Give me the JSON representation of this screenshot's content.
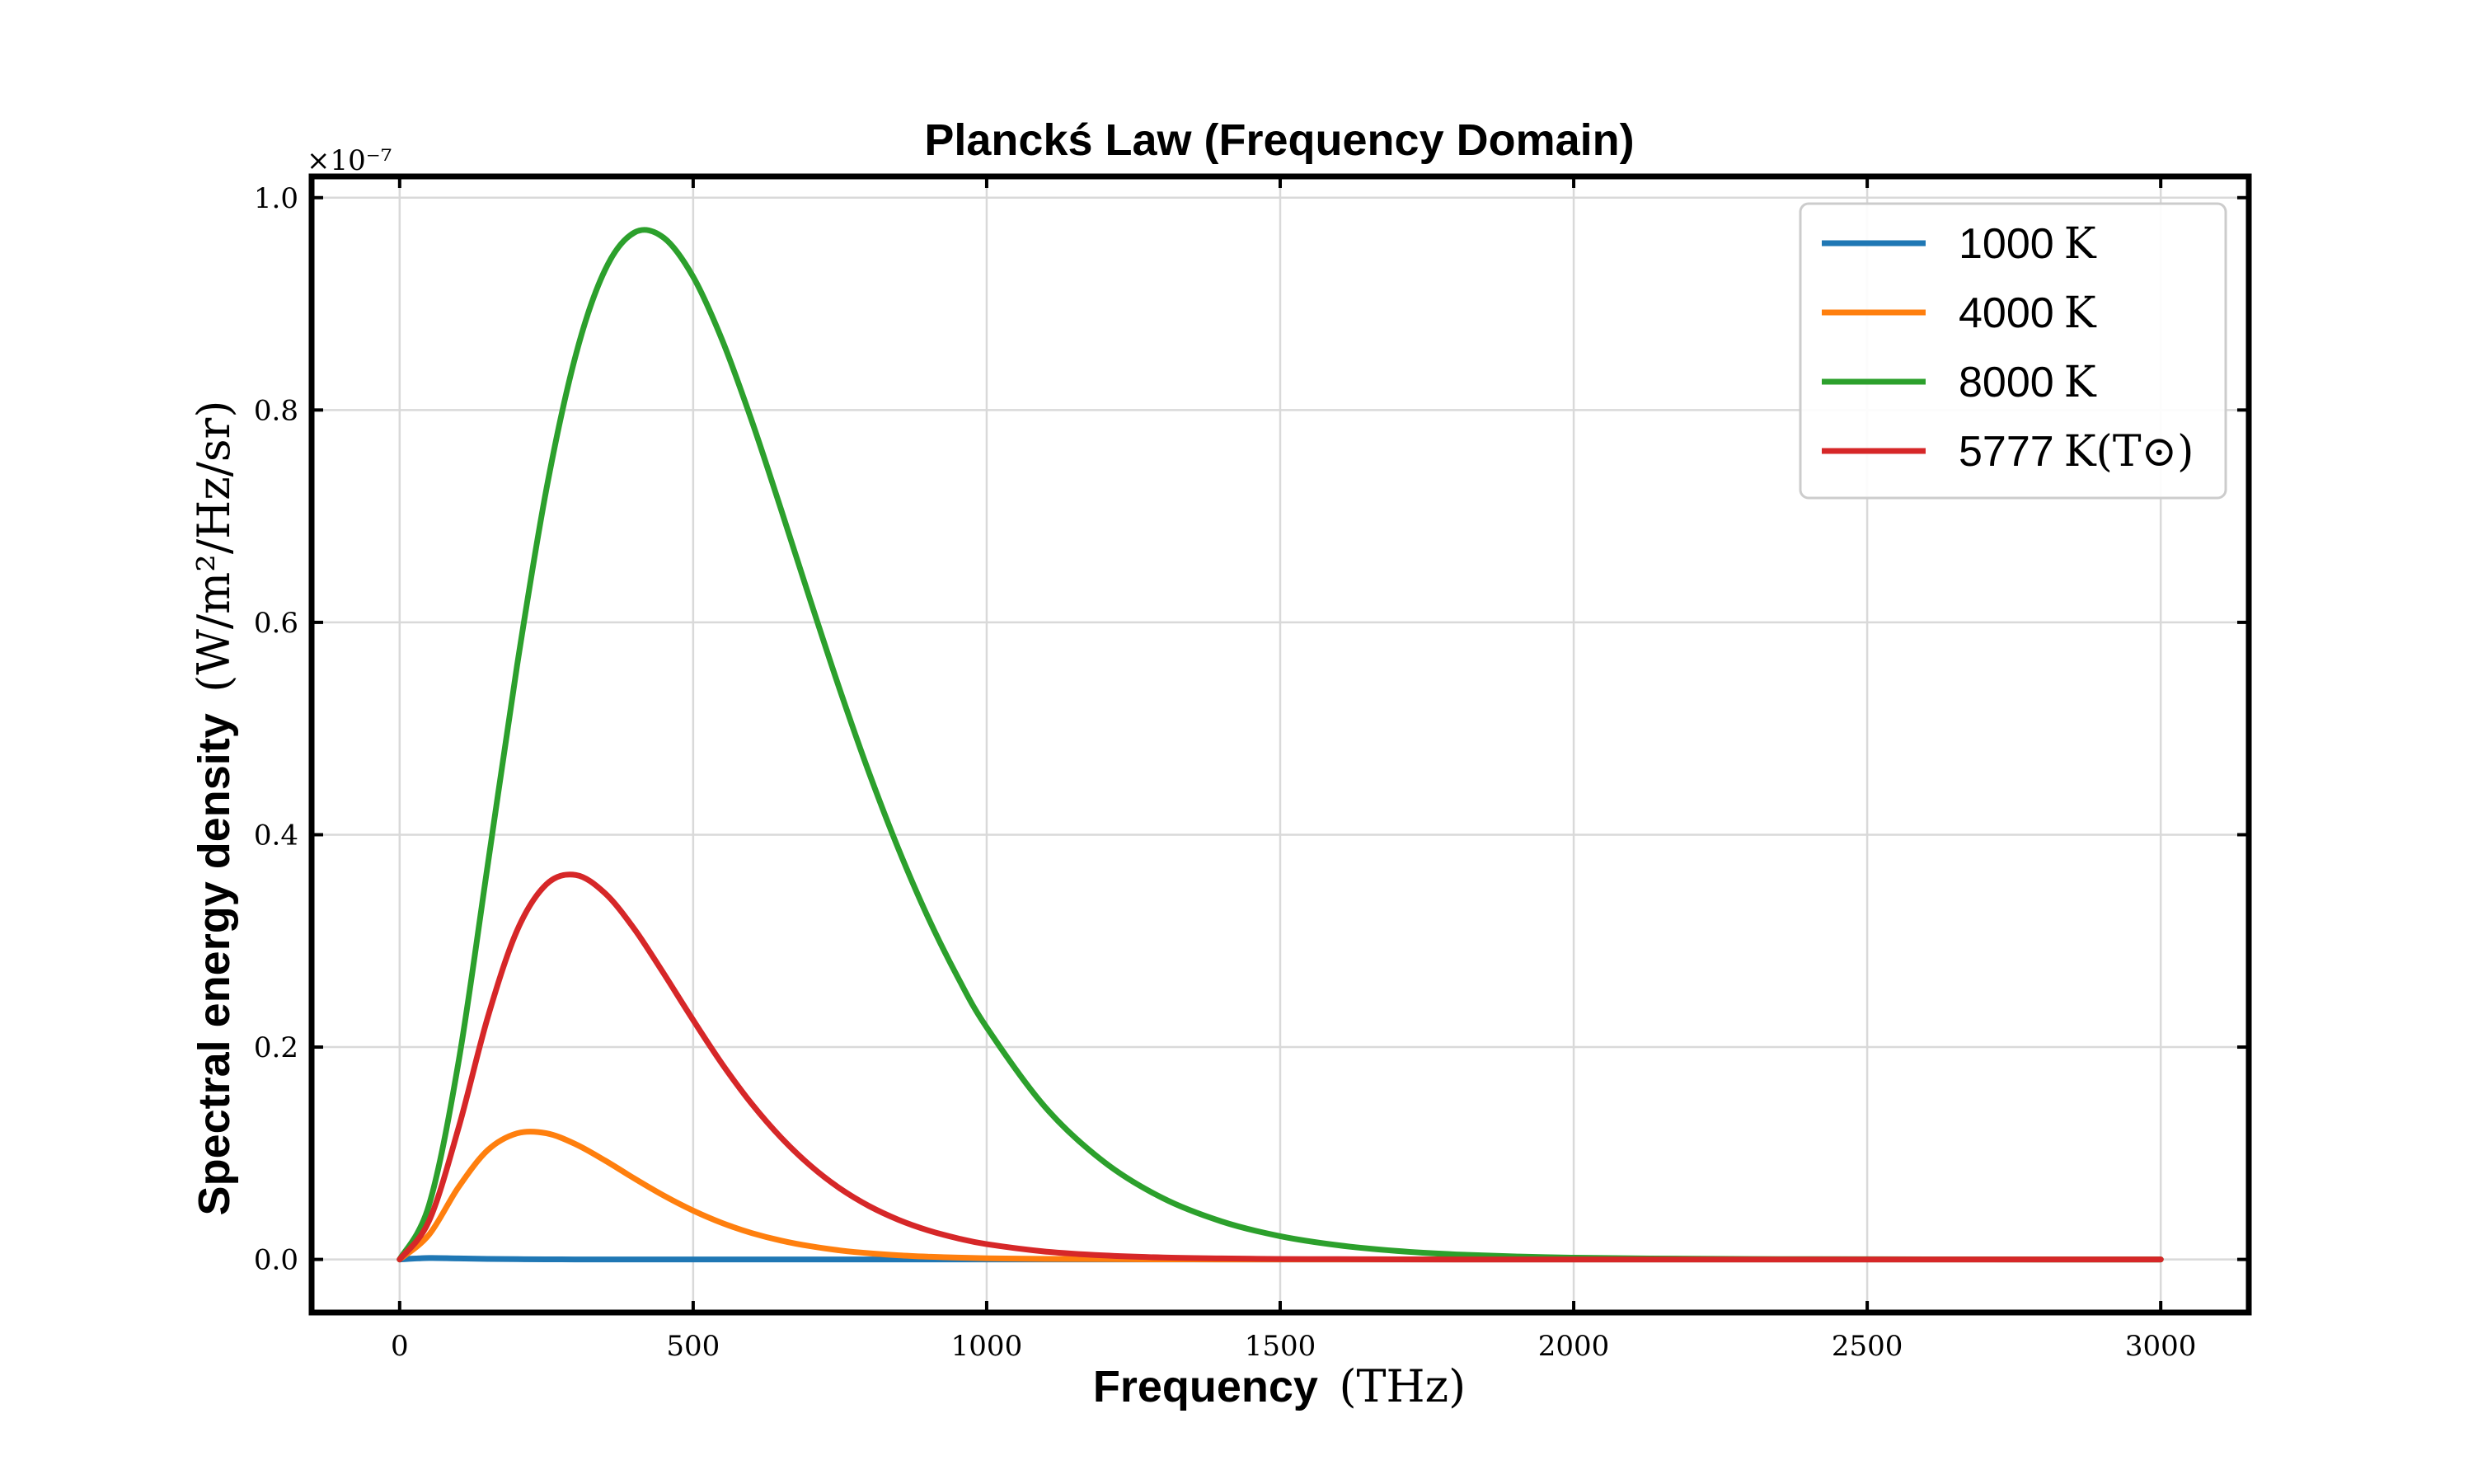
{
  "chart_data": {
    "type": "line",
    "title": "Planckś Law (Frequency Domain)",
    "xlabel": "Frequency",
    "xlabel_unit": "(THz)",
    "ylabel": "Spectral energy density",
    "ylabel_unit": "(W/m²/Hz/sr)",
    "y_multiplier": "×10⁻⁷",
    "xlim": [
      -150,
      3150
    ],
    "ylim": [
      -0.05,
      1.02
    ],
    "x_ticks": [
      0,
      500,
      1000,
      1500,
      2000,
      2500,
      3000
    ],
    "x_tick_labels": [
      "0",
      "500",
      "1000",
      "1500",
      "2000",
      "2500",
      "3000"
    ],
    "y_ticks": [
      0.0,
      0.2,
      0.4,
      0.6,
      0.8,
      1.0
    ],
    "y_tick_labels": [
      "0.0",
      "0.2",
      "0.4",
      "0.6",
      "0.8",
      "1.0"
    ],
    "grid": true,
    "legend_position": "top-right",
    "x": [
      0,
      50,
      100,
      150,
      200,
      250,
      300,
      350,
      400,
      450,
      500,
      550,
      600,
      650,
      700,
      750,
      800,
      850,
      900,
      950,
      1000,
      1100,
      1200,
      1300,
      1400,
      1500,
      1600,
      1700,
      1800,
      1900,
      2000,
      2200,
      2400,
      2600,
      2800,
      3000
    ],
    "series": [
      {
        "name": "1000 K",
        "label_value": "1000",
        "label_unit": "K",
        "color": "#1f77b4",
        "values": [
          0,
          0.0013,
          0.0009,
          0.0005,
          0.0002,
          0.0001,
          0,
          0,
          0,
          0,
          0,
          0,
          0,
          0,
          0,
          0,
          0,
          0,
          0,
          0,
          0,
          0,
          0,
          0,
          0,
          0,
          0,
          0,
          0,
          0,
          0,
          0,
          0,
          0,
          0,
          0
        ]
      },
      {
        "name": "4000 K",
        "label_value": "4000",
        "label_unit": "K",
        "color": "#ff7f0e",
        "values": [
          0,
          0.0232,
          0.0679,
          0.1029,
          0.1187,
          0.1188,
          0.1085,
          0.0931,
          0.0762,
          0.0601,
          0.046,
          0.0342,
          0.0248,
          0.0177,
          0.0124,
          0.0085,
          0.0058,
          0.0039,
          0.0026,
          0.0017,
          0.0011,
          0.0005,
          0.0002,
          0.0001,
          0,
          0,
          0,
          0,
          0,
          0,
          0,
          0,
          0,
          0,
          0,
          0
        ]
      },
      {
        "name": "8000 K",
        "label_value": "8000",
        "label_unit": "K",
        "color": "#2ca02c",
        "values": [
          0,
          0.0512,
          0.1849,
          0.3712,
          0.559,
          0.7253,
          0.8518,
          0.9321,
          0.9672,
          0.9622,
          0.9255,
          0.8651,
          0.7895,
          0.7059,
          0.62,
          0.5363,
          0.4578,
          0.3862,
          0.3223,
          0.2666,
          0.2186,
          0.1432,
          0.0918,
          0.0577,
          0.0358,
          0.0219,
          0.0133,
          0.0079,
          0.0047,
          0.0028,
          0.0016,
          0.0006,
          0.0002,
          0.0001,
          0,
          0
        ]
      },
      {
        "name": "5777 K(T⊙)",
        "label_value": "5777",
        "label_unit": "K(T⊙)",
        "color": "#d62728",
        "values": [
          0,
          0.0362,
          0.1232,
          0.2278,
          0.3097,
          0.3533,
          0.3621,
          0.3448,
          0.311,
          0.2691,
          0.2254,
          0.1836,
          0.1464,
          0.1146,
          0.0882,
          0.0669,
          0.0502,
          0.0373,
          0.0274,
          0.02,
          0.0144,
          0.0074,
          0.0037,
          0.0018,
          0.0009,
          0.0004,
          0.0002,
          0.0001,
          0,
          0,
          0,
          0,
          0,
          0,
          0,
          0
        ]
      }
    ]
  }
}
